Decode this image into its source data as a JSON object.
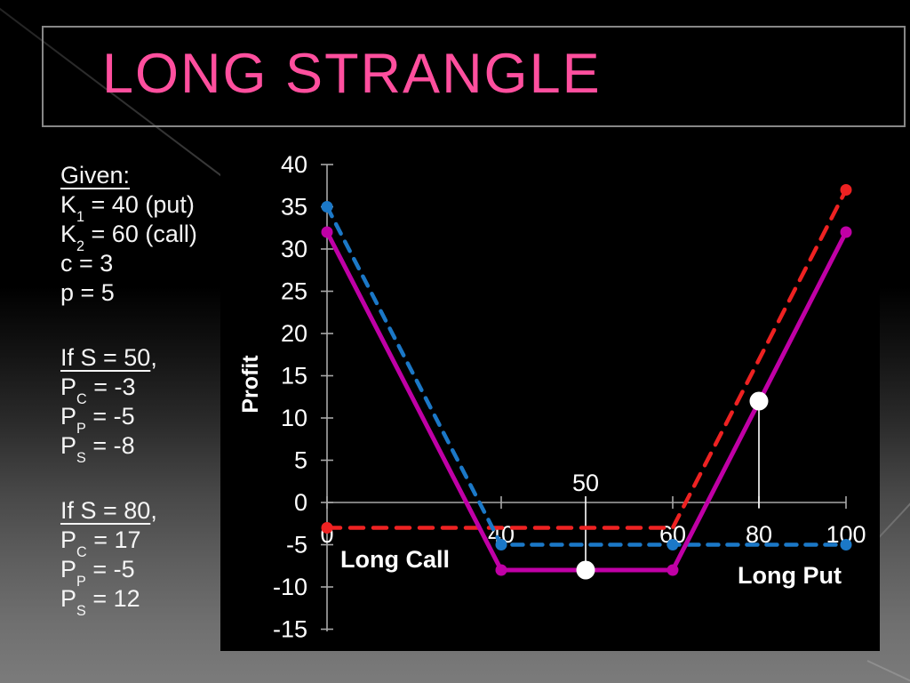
{
  "slide": {
    "title": "LONG STRANGLE",
    "title_color": "#ff4f9e"
  },
  "left_panel": {
    "blocks": [
      {
        "name": "given-block",
        "heading": "Given:",
        "heading_tail": "",
        "lines": [
          [
            {
              "t": "K"
            },
            {
              "sub": "1"
            },
            {
              "t": " = 40 (put)"
            }
          ],
          [
            {
              "t": "K"
            },
            {
              "sub": "2"
            },
            {
              "t": " = 60 (call)"
            }
          ],
          [
            {
              "t": "c = 3"
            }
          ],
          [
            {
              "t": "p = 5"
            }
          ]
        ]
      },
      {
        "name": "s-50-block",
        "heading": "If S = 50",
        "heading_tail": ",",
        "lines": [
          [
            {
              "t": "P"
            },
            {
              "sub": "C"
            },
            {
              "t": " = -3"
            }
          ],
          [
            {
              "t": "P"
            },
            {
              "sub": "P"
            },
            {
              "t": " = -5"
            }
          ],
          [
            {
              "t": "P"
            },
            {
              "sub": "S"
            },
            {
              "t": " = -8"
            }
          ]
        ]
      },
      {
        "name": "s-80-block",
        "heading": "If S = 80",
        "heading_tail": ",",
        "lines": [
          [
            {
              "t": "P"
            },
            {
              "sub": "C"
            },
            {
              "t": " = 17"
            }
          ],
          [
            {
              "t": "P"
            },
            {
              "sub": "P"
            },
            {
              "t": " = -5"
            }
          ],
          [
            {
              "t": "P"
            },
            {
              "sub": "S"
            },
            {
              "t": " = 12"
            }
          ]
        ]
      }
    ]
  },
  "chart_data": {
    "type": "line",
    "title": "",
    "xlabel": "",
    "ylabel": "Profit",
    "ylim": [
      -15,
      40
    ],
    "yticks": [
      40,
      35,
      30,
      25,
      20,
      15,
      10,
      5,
      0,
      -5,
      -10,
      -15
    ],
    "xticks": [
      0,
      40,
      60,
      80,
      100
    ],
    "grid": false,
    "axis_color": "#a8a8a8",
    "tick_text_color": "#ffffff",
    "series": [
      {
        "name": "Long Call",
        "color": "#ee2222",
        "style": "dashed",
        "points": [
          [
            0,
            -3
          ],
          [
            60,
            -3
          ],
          [
            100,
            37
          ]
        ],
        "markers": [
          [
            0,
            -3
          ],
          [
            100,
            37
          ]
        ]
      },
      {
        "name": "Long Put",
        "color": "#1b78c7",
        "style": "dashed",
        "points": [
          [
            0,
            35
          ],
          [
            40,
            -5
          ],
          [
            100,
            -5
          ]
        ],
        "markers": [
          [
            0,
            35
          ],
          [
            40,
            -5
          ],
          [
            60,
            -5
          ],
          [
            100,
            -5
          ]
        ]
      },
      {
        "name": "Long Strangle",
        "color": "#c000a6",
        "style": "solid",
        "points": [
          [
            0,
            32
          ],
          [
            40,
            -8
          ],
          [
            60,
            -8
          ],
          [
            100,
            32
          ]
        ],
        "markers": [
          [
            0,
            32
          ],
          [
            40,
            -8
          ],
          [
            60,
            -8
          ],
          [
            100,
            32
          ]
        ]
      }
    ],
    "highlight_points": [
      {
        "x": 50,
        "y": -8,
        "label": "50",
        "label_above": true
      },
      {
        "x": 80,
        "y": 12,
        "drop_to_axis": true
      }
    ],
    "inline_labels": [
      {
        "text": "Long Call",
        "anchor": "call"
      },
      {
        "text": "Long Put",
        "anchor": "put"
      }
    ]
  }
}
